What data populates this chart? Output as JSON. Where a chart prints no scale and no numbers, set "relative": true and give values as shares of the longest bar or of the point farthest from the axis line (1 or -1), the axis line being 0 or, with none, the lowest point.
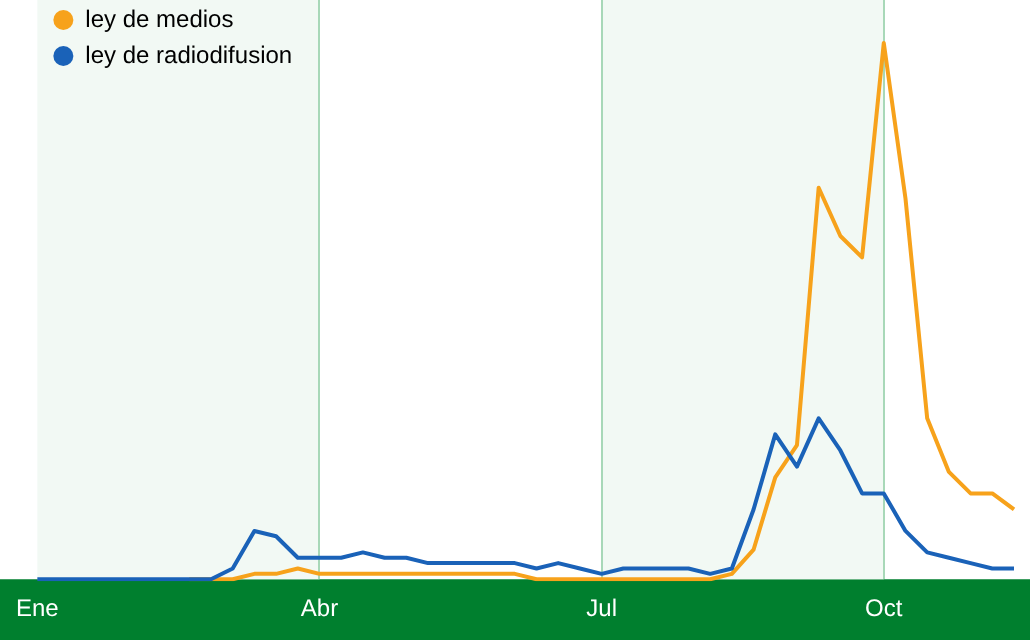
{
  "chart_data": {
    "type": "line",
    "relative": true,
    "grid": "x",
    "legend": "top left",
    "marker": "none",
    "line_style": "solid",
    "categories": [
      "Ene",
      null,
      null,
      null,
      null,
      null,
      null,
      null,
      null,
      null,
      null,
      null,
      null,
      "Abr",
      null,
      null,
      null,
      null,
      null,
      null,
      null,
      null,
      null,
      null,
      null,
      null,
      "Jul",
      null,
      null,
      null,
      null,
      null,
      null,
      null,
      null,
      null,
      null,
      null,
      null,
      "Oct",
      null,
      null,
      null,
      null,
      null,
      null
    ],
    "series": [
      {
        "name": "ley de medios",
        "color": "#f7a21b",
        "values": [
          null,
          null,
          null,
          null,
          null,
          null,
          null,
          0,
          0,
          0,
          0.01,
          0.01,
          0.02,
          0.01,
          0.01,
          0.01,
          0.01,
          0.01,
          0.01,
          0.01,
          0.01,
          0.01,
          0.01,
          0,
          0,
          0,
          0,
          0,
          0,
          0,
          0,
          0,
          0.01,
          0.055,
          0.19,
          0.25,
          0.73,
          0.64,
          0.6,
          1,
          0.71,
          0.3,
          0.2,
          0.16,
          0.16,
          0.13
        ]
      },
      {
        "name": "ley de radiodifusion",
        "color": "#1a62b8",
        "values": [
          0,
          0,
          0,
          0,
          0,
          0,
          0,
          0,
          0,
          0.02,
          0.09,
          0.08,
          0.04,
          0.04,
          0.04,
          0.05,
          0.04,
          0.04,
          0.03,
          0.03,
          0.03,
          0.03,
          0.03,
          0.02,
          0.03,
          0.02,
          0.01,
          0.02,
          0.02,
          0.02,
          0.02,
          0.01,
          0.02,
          0.13,
          0.27,
          0.21,
          0.3,
          0.24,
          0.16,
          0.16,
          0.09,
          0.05,
          0.04,
          0.03,
          0.02,
          0.02
        ]
      }
    ],
    "bands": [
      {
        "axis": "x",
        "from": "Ene",
        "to": "Abr",
        "color": "#f2f9f4"
      },
      {
        "axis": "x",
        "from": "Jul",
        "to": "Oct",
        "color": "#f2f9f4"
      }
    ]
  }
}
